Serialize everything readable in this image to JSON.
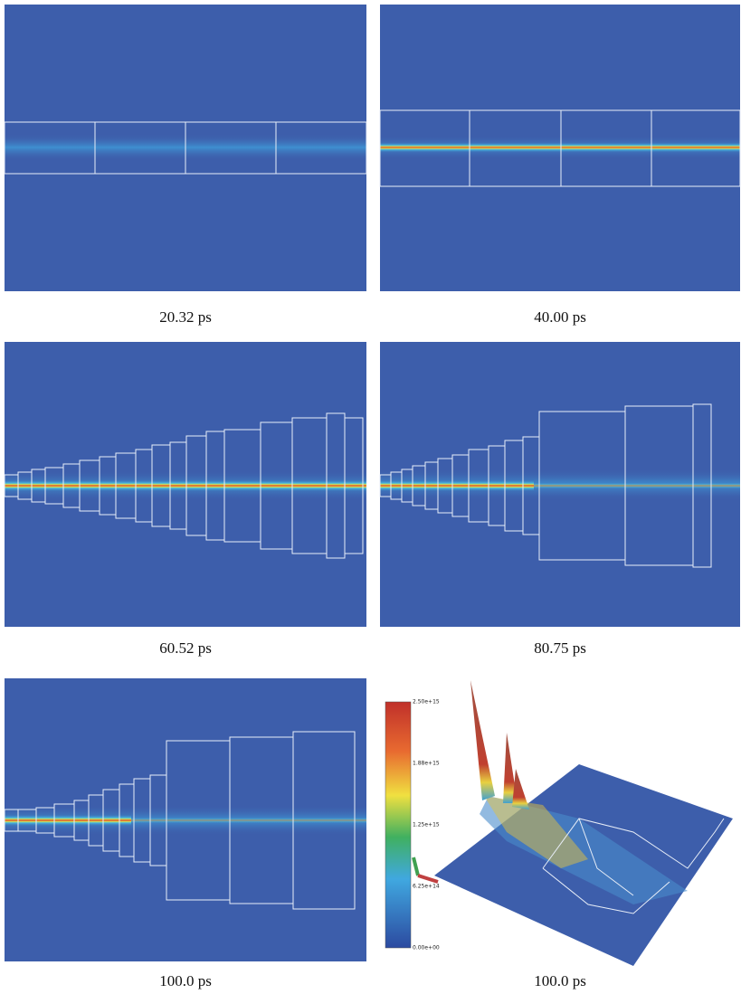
{
  "panels": [
    {
      "caption": "20.32 ps"
    },
    {
      "caption": "40.00 ps"
    },
    {
      "caption": "60.52 ps"
    },
    {
      "caption": "80.75 ps"
    },
    {
      "caption": "100.0 ps"
    },
    {
      "caption": "100.0 ps"
    }
  ],
  "colorbar": {
    "labels": [
      "2.50e+15",
      "1.88e+15",
      "1.25e+15",
      "6.25e+14",
      "0.00e+00"
    ]
  }
}
